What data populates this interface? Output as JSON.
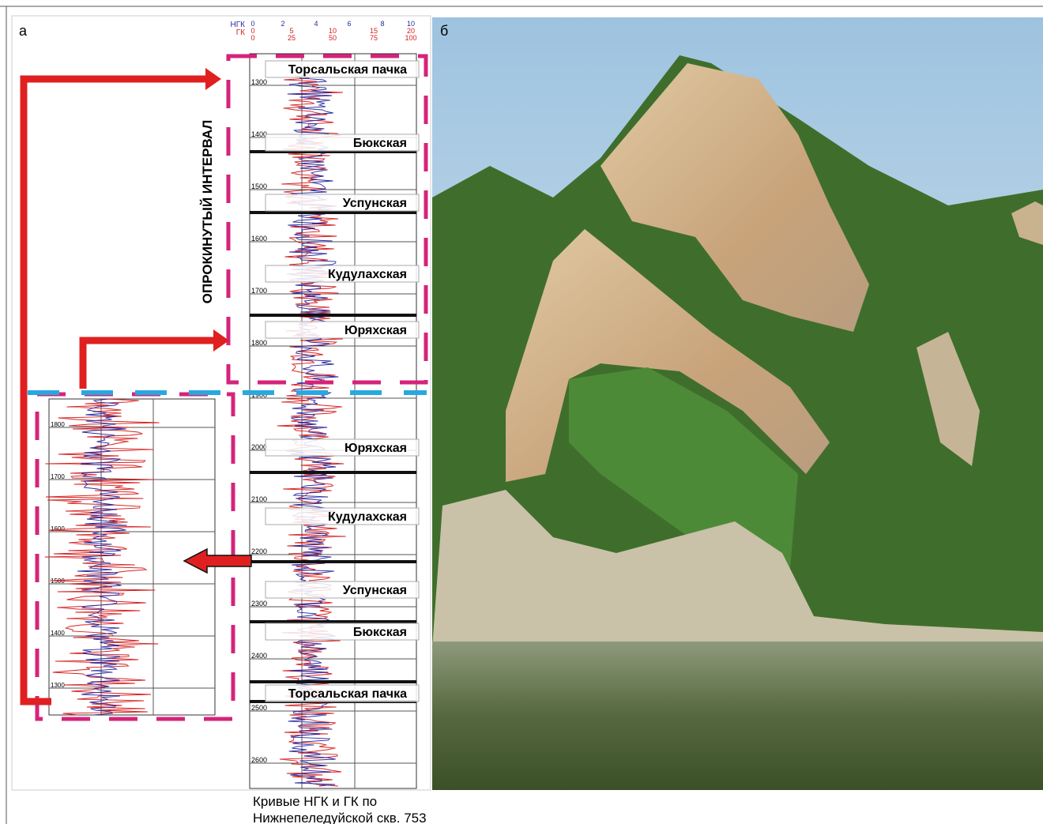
{
  "panel_a_label": "а",
  "panel_b_label": "б",
  "log": {
    "ngk_label": "НГК",
    "gk_label": "ГК",
    "ngk_ticks": [
      0,
      2,
      4,
      6,
      8,
      10
    ],
    "gk_ticks_1": [
      0,
      5,
      10,
      15,
      20
    ],
    "gk_ticks_2": [
      0,
      25,
      50,
      75,
      100
    ],
    "depths": [
      1300,
      1400,
      1500,
      1600,
      1700,
      1800,
      1900,
      2000,
      2100,
      2200,
      2300,
      2400,
      2500,
      2600
    ],
    "inset_depths": [
      1800,
      1700,
      1600,
      1500,
      1400,
      1300
    ],
    "overturned_label": "ОПРОКИНУТЫЙ ИНТЕРВАЛ",
    "formations": [
      "Торсальская пачка",
      "Бюкская",
      "Успунская",
      "Кудулахская",
      "Юряхская",
      "Юряхская",
      "Кудулахская",
      "Успунская",
      "Бюкская",
      "Торсальская пачка"
    ]
  },
  "caption": [
    "Кривые НГК и ГК по",
    "Нижнепеледуйской скв. 753"
  ]
}
